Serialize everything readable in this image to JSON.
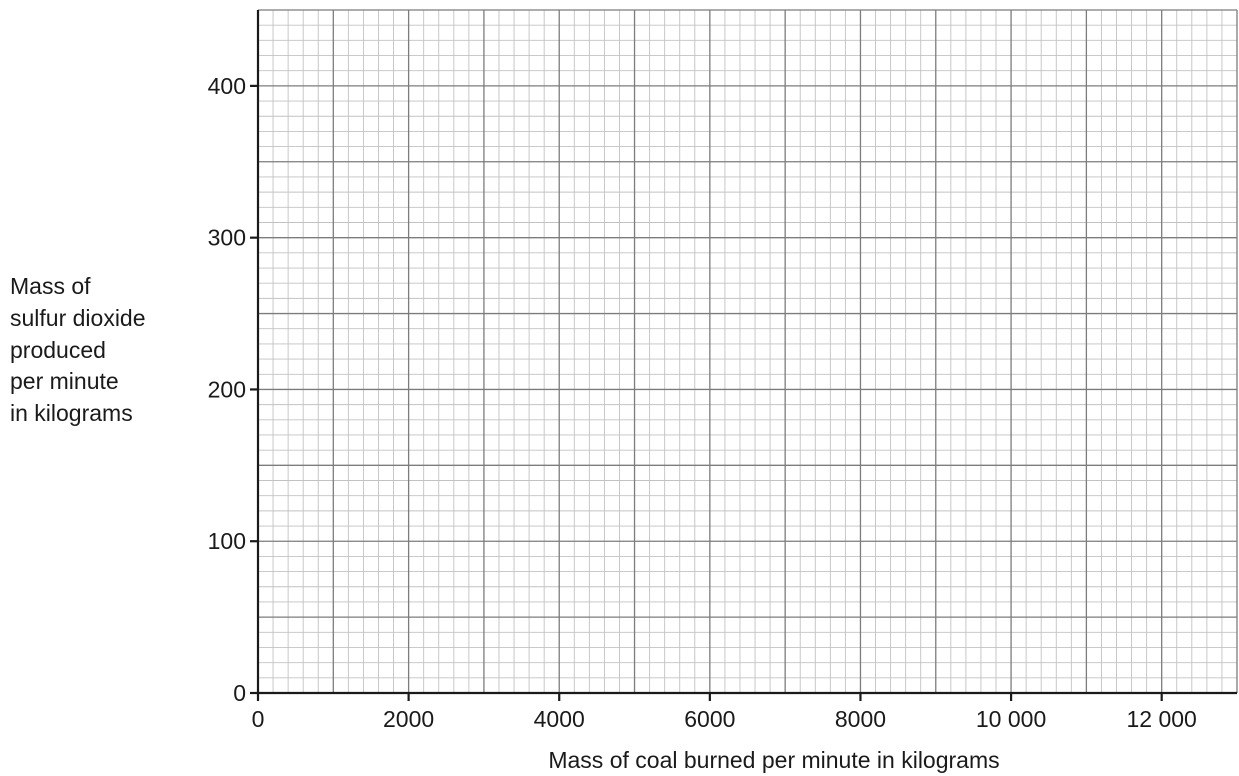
{
  "chart_data": {
    "type": "scatter",
    "xlabel": "Mass of coal burned per minute in kilograms",
    "ylabel_lines": [
      "Mass of",
      "sulfur dioxide",
      "produced",
      "per minute",
      "in kilograms"
    ],
    "xlim": [
      0,
      13000
    ],
    "ylim": [
      0,
      450
    ],
    "x_ticks": [
      {
        "value": 0,
        "label": "0"
      },
      {
        "value": 2000,
        "label": "2000"
      },
      {
        "value": 4000,
        "label": "4000"
      },
      {
        "value": 6000,
        "label": "6000"
      },
      {
        "value": 8000,
        "label": "8000"
      },
      {
        "value": 10000,
        "label": "10 000"
      },
      {
        "value": 12000,
        "label": "12 000"
      }
    ],
    "y_ticks": [
      {
        "value": 0,
        "label": "0"
      },
      {
        "value": 100,
        "label": "100"
      },
      {
        "value": 200,
        "label": "200"
      },
      {
        "value": 300,
        "label": "300"
      },
      {
        "value": 400,
        "label": "400"
      }
    ],
    "grid": true,
    "grid_major_x": 1000,
    "grid_major_y": 50,
    "grid_minor_x": 200,
    "grid_minor_y": 10,
    "points": []
  }
}
